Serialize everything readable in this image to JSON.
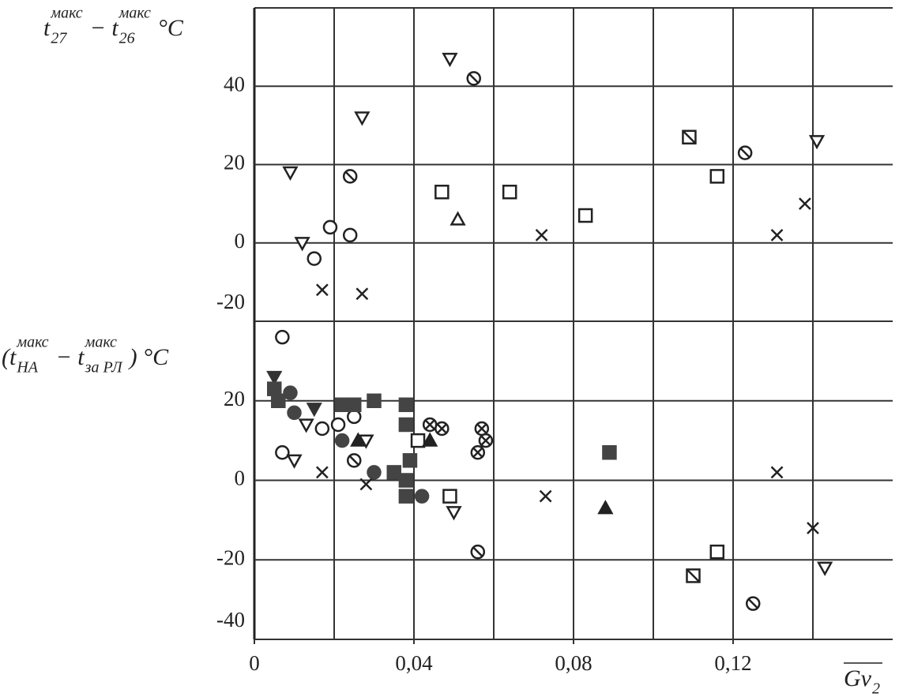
{
  "chart_data": [
    {
      "type": "scatter",
      "ylabel": [
        {
          "base": "t",
          "sub": "27",
          "sup": "макс"
        },
        {
          "base": "− t",
          "sub": "26",
          "sup": "макс"
        },
        {
          "base": "°C"
        }
      ],
      "xlim": [
        0,
        0.16
      ],
      "ylim": [
        -20,
        60
      ],
      "yticks": [
        -20,
        0,
        20,
        40
      ],
      "xgrid": [
        0.02,
        0.04,
        0.06,
        0.08,
        0.1,
        0.12,
        0.14
      ],
      "series": [
        {
          "marker": "triangle-down-open",
          "color": "#222",
          "x": [
            0.049,
            0.027,
            0.009,
            0.012,
            0.141
          ],
          "values": [
            47,
            32,
            18,
            0,
            26
          ]
        },
        {
          "marker": "circle-slash",
          "color": "#222",
          "x": [
            0.055,
            0.024,
            0.123
          ],
          "values": [
            42,
            17,
            23
          ]
        },
        {
          "marker": "circle-open",
          "color": "#222",
          "x": [
            0.019,
            0.024,
            0.015
          ],
          "values": [
            4,
            2,
            -4
          ]
        },
        {
          "marker": "square-open",
          "color": "#222",
          "x": [
            0.047,
            0.064,
            0.083,
            0.116
          ],
          "values": [
            13,
            13,
            7,
            17
          ]
        },
        {
          "marker": "square-slash",
          "color": "#222",
          "x": [
            0.109
          ],
          "values": [
            27
          ]
        },
        {
          "marker": "triangle-up-open",
          "color": "#222",
          "x": [
            0.051
          ],
          "values": [
            6
          ]
        },
        {
          "marker": "x",
          "color": "#222",
          "x": [
            0.017,
            0.027,
            0.072,
            0.131,
            0.138
          ],
          "values": [
            -12,
            -13,
            2,
            2,
            10
          ]
        }
      ]
    },
    {
      "type": "scatter",
      "ylabel": [
        {
          "base": "(t",
          "sub": "НА",
          "sup": "макс"
        },
        {
          "base": "− t",
          "sub": "за РЛ",
          "sup": "макс"
        },
        {
          "base": ") °C"
        }
      ],
      "xlabel": {
        "base": "Gv",
        "sub": "2"
      },
      "xlim": [
        0,
        0.16
      ],
      "ylim": [
        -40,
        40
      ],
      "yticks": [
        -40,
        -20,
        0,
        20
      ],
      "xticks": [
        0,
        {
          "value": 0.04,
          "label": "0,04"
        },
        {
          "value": 0.08,
          "label": "0,08"
        },
        {
          "value": 0.12,
          "label": "0,12"
        }
      ],
      "xgrid": [
        0.02,
        0.04,
        0.06,
        0.08,
        0.1,
        0.12,
        0.14
      ],
      "series": [
        {
          "marker": "circle-open",
          "color": "#222",
          "x": [
            0.007,
            0.007,
            0.021,
            0.017,
            0.025
          ],
          "values": [
            36,
            7,
            14,
            13,
            16
          ]
        },
        {
          "marker": "triangle-down-open",
          "color": "#222",
          "x": [
            0.01,
            0.05,
            0.143,
            0.028,
            0.013
          ],
          "values": [
            5,
            -8,
            -22,
            10,
            14
          ]
        },
        {
          "marker": "triangle-down-filled",
          "color": "#333",
          "x": [
            0.005,
            0.015
          ],
          "values": [
            26,
            18
          ]
        },
        {
          "marker": "square-filled",
          "color": "#444",
          "x": [
            0.005,
            0.006,
            0.022,
            0.025,
            0.03,
            0.038,
            0.038,
            0.039,
            0.038,
            0.038,
            0.089,
            0.035
          ],
          "values": [
            23,
            20,
            19,
            19,
            20,
            19,
            14,
            5,
            0,
            -4,
            7,
            2
          ]
        },
        {
          "marker": "circle-filled",
          "color": "#444",
          "x": [
            0.009,
            0.01,
            0.022,
            0.03,
            0.042
          ],
          "values": [
            22,
            17,
            10,
            2,
            -4
          ]
        },
        {
          "marker": "circle-cross",
          "color": "#222",
          "x": [
            0.044,
            0.047,
            0.057,
            0.058,
            0.056
          ],
          "values": [
            14,
            13,
            13,
            10,
            7
          ]
        },
        {
          "marker": "circle-slash",
          "color": "#222",
          "x": [
            0.025,
            0.056,
            0.125
          ],
          "values": [
            5,
            -18,
            -31
          ]
        },
        {
          "marker": "square-open",
          "color": "#222",
          "x": [
            0.041,
            0.049,
            0.116
          ],
          "values": [
            10,
            -4,
            -18
          ]
        },
        {
          "marker": "square-slash",
          "color": "#222",
          "x": [
            0.11
          ],
          "values": [
            -24
          ]
        },
        {
          "marker": "triangle-up-filled",
          "color": "#222",
          "x": [
            0.044,
            0.088,
            0.026
          ],
          "values": [
            10,
            -7,
            10
          ]
        },
        {
          "marker": "x",
          "color": "#222",
          "x": [
            0.017,
            0.028,
            0.073,
            0.131,
            0.14
          ],
          "values": [
            2,
            -1,
            -4,
            2,
            -12
          ]
        }
      ]
    }
  ]
}
